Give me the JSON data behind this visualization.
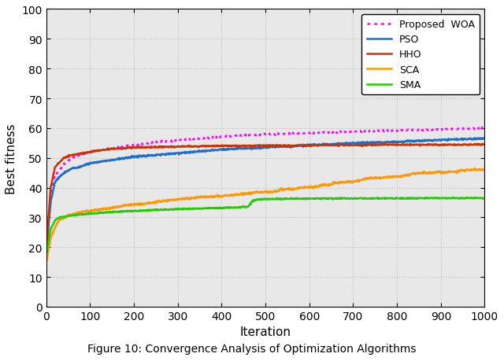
{
  "xlabel": "Iteration",
  "ylabel": "Best fitness",
  "xlim": [
    0,
    1000
  ],
  "ylim": [
    0,
    100
  ],
  "xticks": [
    0,
    100,
    200,
    300,
    400,
    500,
    600,
    700,
    800,
    900,
    1000
  ],
  "yticks": [
    0,
    10,
    20,
    30,
    40,
    50,
    60,
    70,
    80,
    90,
    100
  ],
  "figcaption": "Figure 10: Convergence Analysis of Optimization Algorithms",
  "background_color": "#E8E8E8",
  "grid_color": "#BBBBBB",
  "lines": [
    {
      "label": "Proposed  WOA",
      "color": "#FF00FF",
      "linestyle": "dotted",
      "linewidth": 1.8
    },
    {
      "label": "PSO",
      "color": "#1E6FCC",
      "linestyle": "solid",
      "linewidth": 1.8
    },
    {
      "label": "HHO",
      "color": "#CC3300",
      "linestyle": "solid",
      "linewidth": 1.8
    },
    {
      "label": "SCA",
      "color": "#FF9900",
      "linestyle": "solid",
      "linewidth": 1.8
    },
    {
      "label": "SMA",
      "color": "#22CC00",
      "linestyle": "solid",
      "linewidth": 1.8
    }
  ]
}
